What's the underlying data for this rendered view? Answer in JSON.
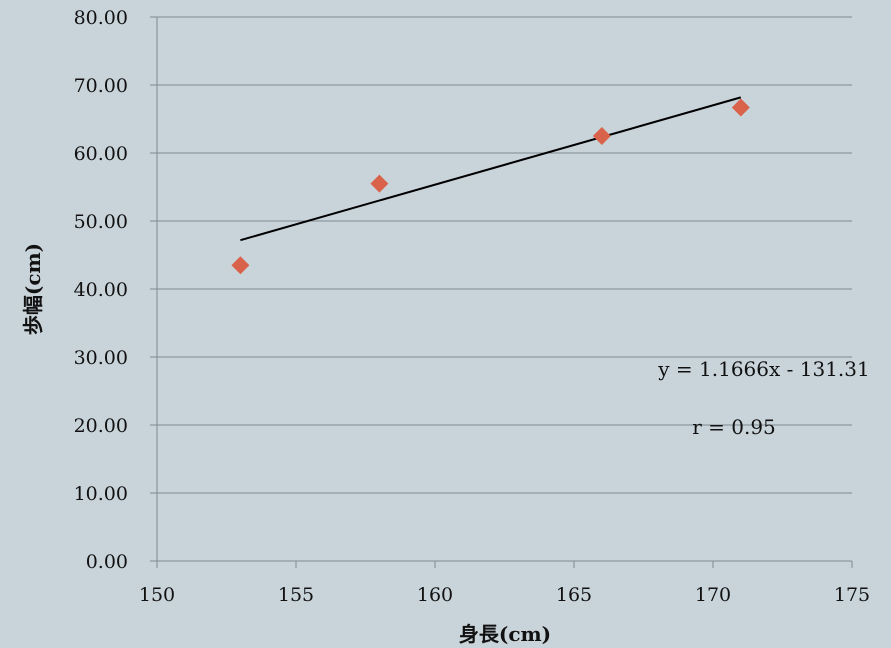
{
  "chart_data": {
    "type": "scatter",
    "xlabel": "身長(cm)",
    "ylabel": "歩幅(cm)",
    "xlim": [
      150,
      175
    ],
    "ylim": [
      0,
      80
    ],
    "x_ticks": [
      "150",
      "155",
      "160",
      "165",
      "170",
      "175"
    ],
    "y_ticks": [
      "0.00",
      "10.00",
      "20.00",
      "30.00",
      "40.00",
      "50.00",
      "60.00",
      "70.00",
      "80.00"
    ],
    "grid": true,
    "point_color": "#d9634a",
    "marker": "diamond",
    "series": [
      {
        "points": [
          {
            "x": 153,
            "y": 43.5
          },
          {
            "x": 158,
            "y": 55.5
          },
          {
            "x": 166,
            "y": 62.5
          },
          {
            "x": 171,
            "y": 66.7
          }
        ]
      }
    ],
    "trendline": {
      "slope": 1.1666,
      "intercept": -131.31,
      "x_range": [
        153,
        171
      ],
      "color": "#000000"
    },
    "annotations": {
      "equation": "y = 1.1666x - 131.31",
      "r": "r = 0.95"
    }
  }
}
